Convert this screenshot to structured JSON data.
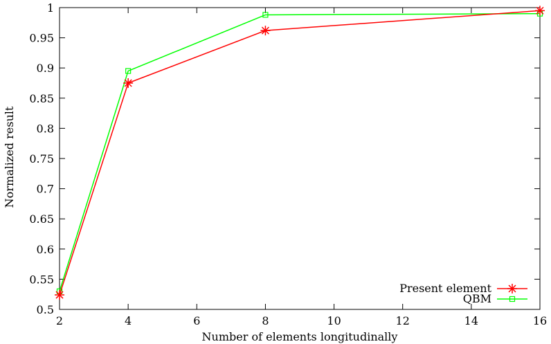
{
  "chart_data": {
    "type": "line",
    "title": "",
    "xlabel": "Number of elements longitudinally",
    "ylabel": "Normalized result",
    "xlim": [
      2,
      16
    ],
    "ylim": [
      0.5,
      1
    ],
    "xticks": [
      "2",
      "4",
      "6",
      "8",
      "10",
      "12",
      "14",
      "16"
    ],
    "yticks": [
      "0.5",
      "0.55",
      "0.6",
      "0.65",
      "0.7",
      "0.75",
      "0.8",
      "0.85",
      "0.9",
      "0.95",
      "1"
    ],
    "grid": false,
    "legend_position": "bottom-right",
    "series": [
      {
        "name": "Present element",
        "color": "#ff0000",
        "marker": "asterisk",
        "x": [
          2,
          4,
          8,
          16
        ],
        "y": [
          0.524,
          0.875,
          0.962,
          0.995
        ]
      },
      {
        "name": "QBM",
        "color": "#00ff00",
        "marker": "square",
        "x": [
          2,
          4,
          8,
          16
        ],
        "y": [
          0.53,
          0.895,
          0.988,
          0.99
        ]
      }
    ]
  }
}
